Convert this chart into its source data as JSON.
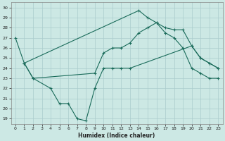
{
  "title": "",
  "xlabel": "Humidex (Indice chaleur)",
  "background_color": "#cce8e4",
  "grid_color": "#aacccc",
  "line_color": "#1a6b5a",
  "xlim": [
    -0.5,
    23.5
  ],
  "ylim": [
    18.5,
    30.5
  ],
  "xticks": [
    0,
    1,
    2,
    3,
    4,
    5,
    6,
    7,
    8,
    9,
    10,
    11,
    12,
    13,
    14,
    15,
    16,
    17,
    18,
    19,
    20,
    21,
    22,
    23
  ],
  "yticks": [
    19,
    20,
    21,
    22,
    23,
    24,
    25,
    26,
    27,
    28,
    29,
    30
  ],
  "line1_x": [
    0,
    1,
    14,
    15,
    16,
    17,
    18,
    19,
    20,
    21,
    22,
    23
  ],
  "line1_y": [
    27.0,
    24.5,
    29.7,
    29.0,
    28.5,
    28.0,
    27.8,
    27.8,
    26.2,
    25.0,
    24.5,
    24.0
  ],
  "line2_x": [
    1,
    2,
    4,
    5,
    6,
    7,
    8,
    9,
    10,
    11,
    12,
    13,
    20,
    21,
    22,
    23
  ],
  "line2_y": [
    24.5,
    23.0,
    22.0,
    20.5,
    20.5,
    19.0,
    18.8,
    22.0,
    24.0,
    24.0,
    24.0,
    24.0,
    26.2,
    25.0,
    24.5,
    24.0
  ],
  "line3_x": [
    1,
    2,
    9,
    10,
    11,
    12,
    13,
    14,
    15,
    16,
    17,
    18,
    19,
    20,
    21,
    22,
    23
  ],
  "line3_y": [
    24.5,
    23.0,
    23.5,
    25.5,
    26.0,
    26.0,
    26.5,
    27.5,
    28.0,
    28.5,
    27.5,
    27.0,
    26.0,
    24.0,
    23.5,
    23.0,
    23.0
  ]
}
